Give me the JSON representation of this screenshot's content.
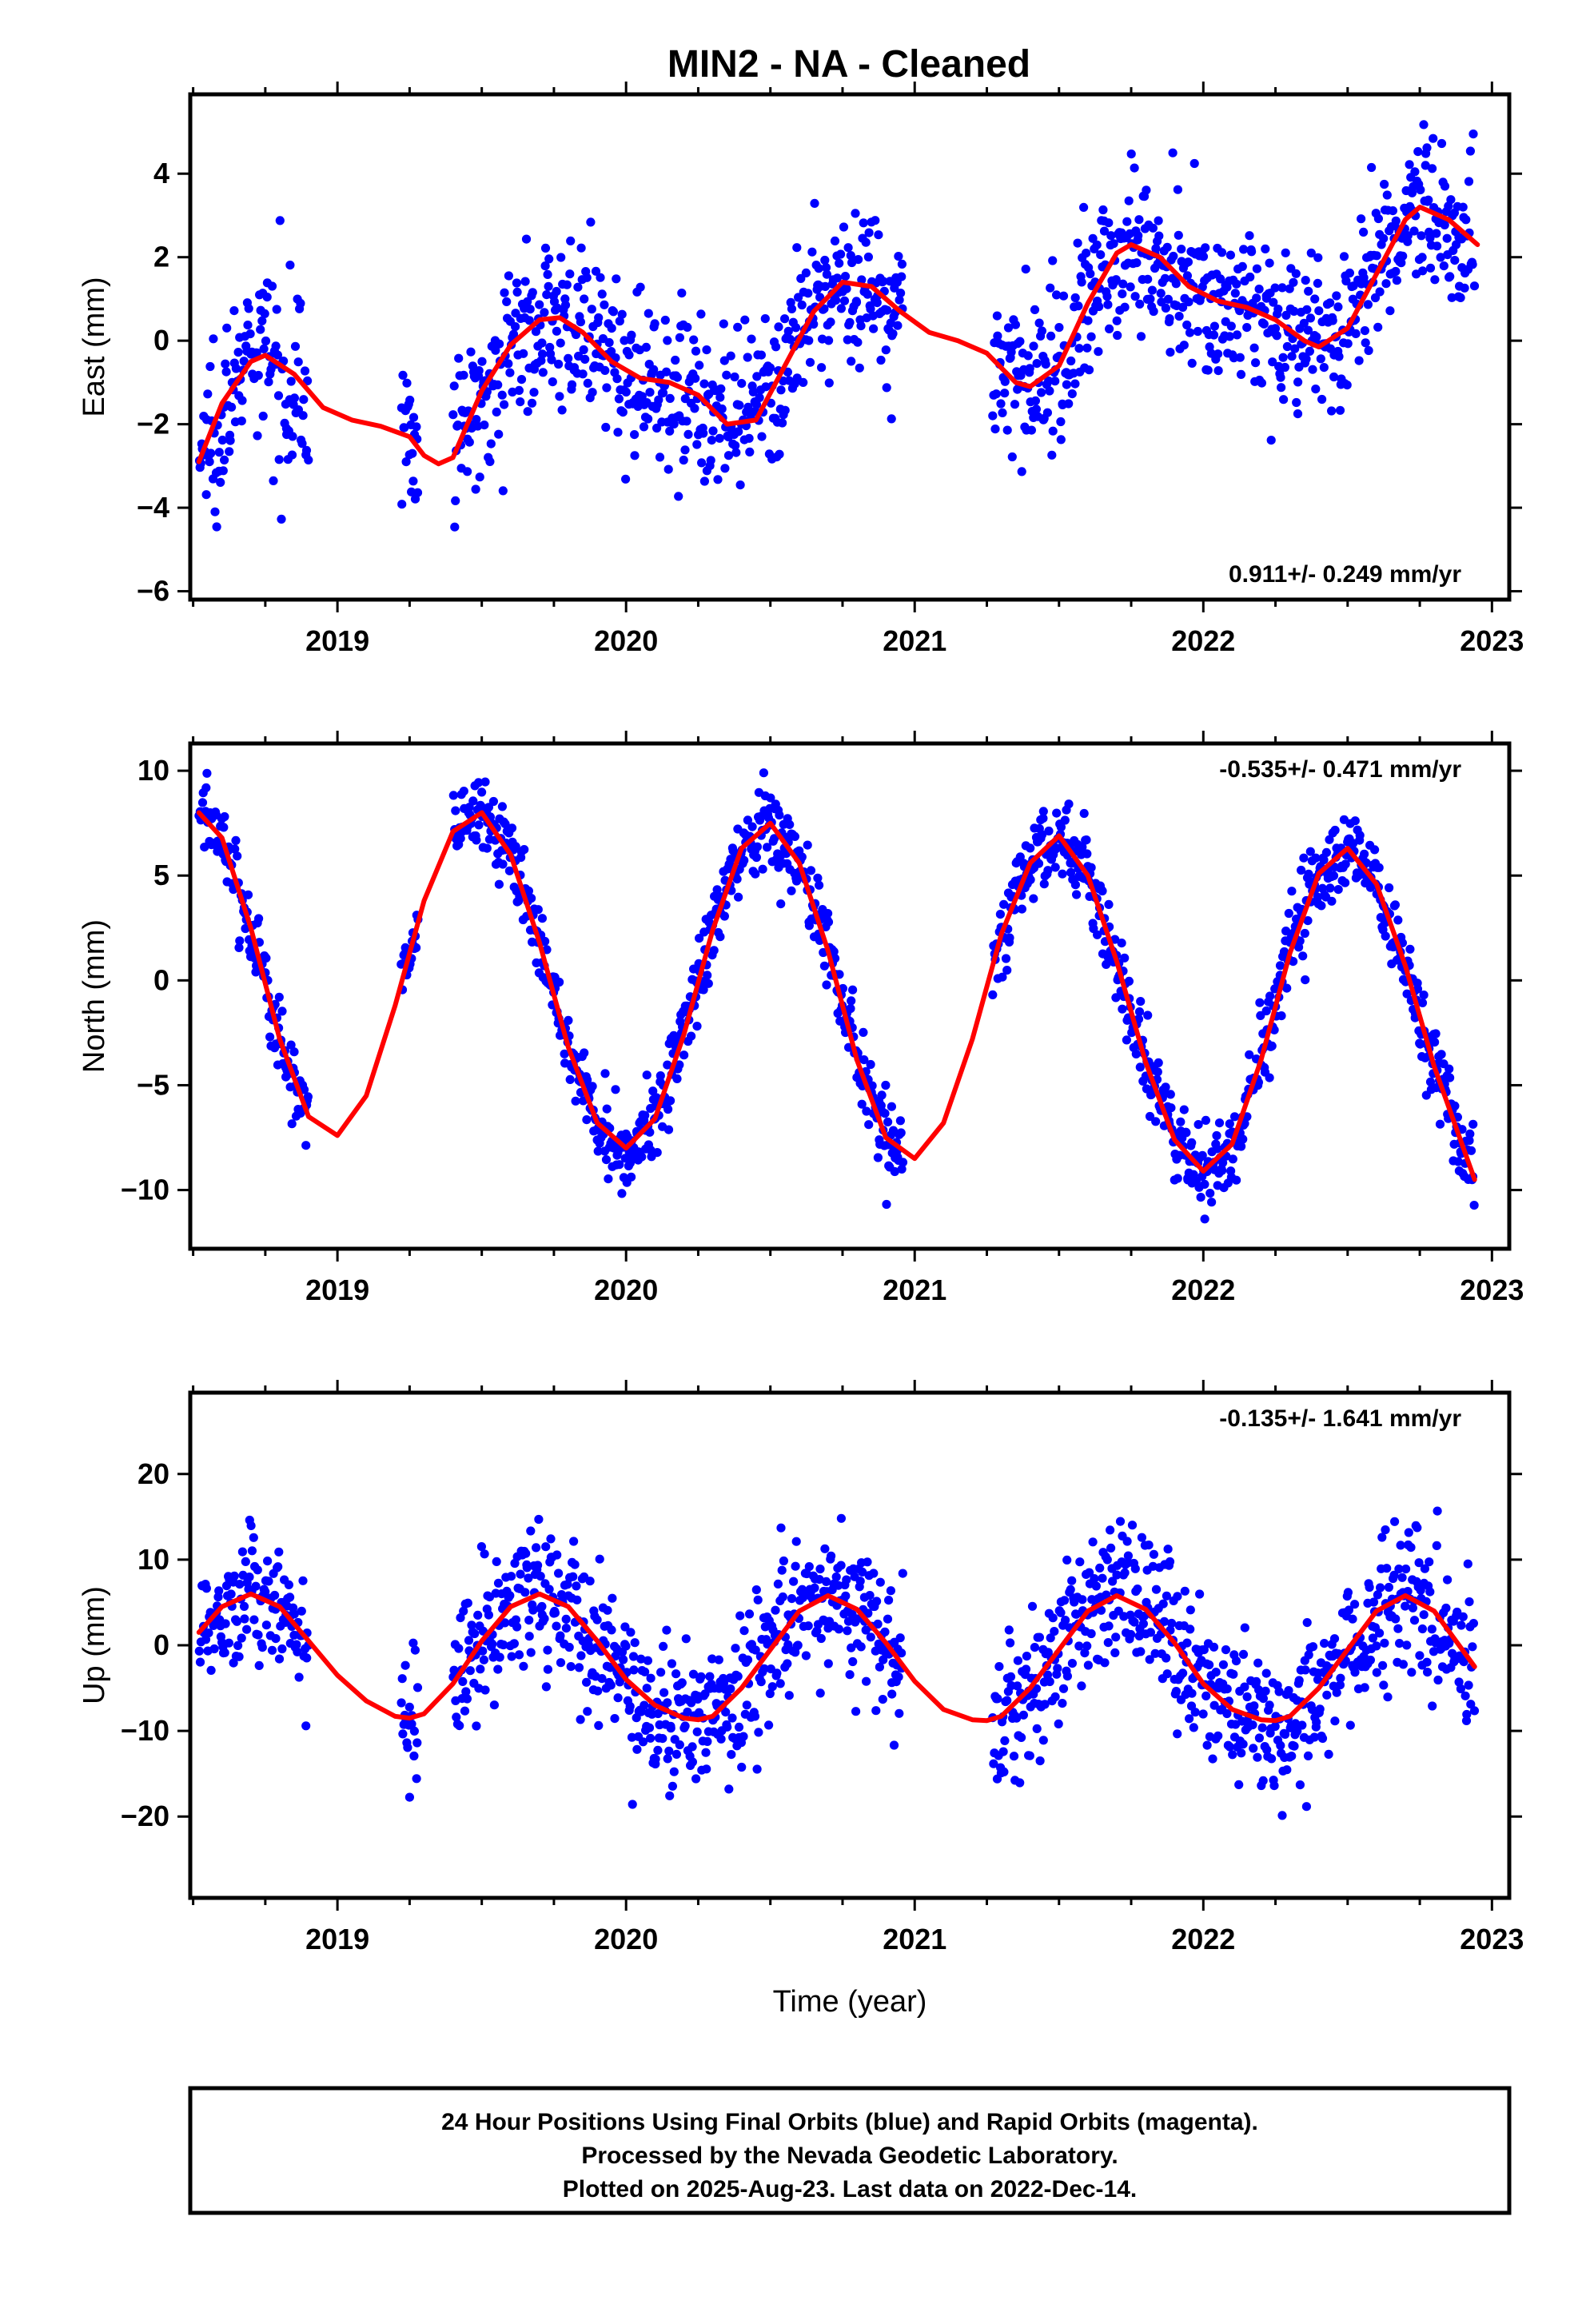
{
  "title": "MIN2  - NA - Cleaned",
  "footer": {
    "lines": [
      "24 Hour Positions Using Final Orbits (blue) and Rapid Orbits (magenta).",
      "Processed by the Nevada Geodetic Laboratory.",
      "Plotted on 2025-Aug-23. Last data on 2022-Dec-14."
    ]
  },
  "colors": {
    "points": "#0000ff",
    "model": "#ff0000",
    "axes": "#000000"
  },
  "chart_data": [
    {
      "type": "scatter",
      "component": "east",
      "ylabel": "East (mm)",
      "xlabel": "",
      "xlim": [
        2018.49,
        2023.06
      ],
      "ylim": [
        -6.2,
        5.9
      ],
      "xticks": [
        2019,
        2020,
        2021,
        2022,
        2023
      ],
      "yticks": [
        -6,
        -4,
        -2,
        0,
        2,
        4
      ],
      "rate_label": "0.911+/- 0.249 mm/yr",
      "rate_position": "bottom-right",
      "gap": [
        2020.97,
        2021.27
      ],
      "model": {
        "x": [
          2018.52,
          2018.6,
          2018.7,
          2018.75,
          2018.85,
          2018.95,
          2019.05,
          2019.15,
          2019.25,
          2019.3,
          2019.35,
          2019.4,
          2019.5,
          2019.6,
          2019.7,
          2019.77,
          2019.85,
          2019.95,
          2020.05,
          2020.15,
          2020.25,
          2020.35,
          2020.45,
          2020.55,
          2020.65,
          2020.75,
          2020.85,
          2020.95,
          2021.05,
          2021.15,
          2021.25,
          2021.35,
          2021.4,
          2021.5,
          2021.6,
          2021.7,
          2021.75,
          2021.85,
          2021.95,
          2022.05,
          2022.15,
          2022.25,
          2022.35,
          2022.4,
          2022.5,
          2022.6,
          2022.7,
          2022.75,
          2022.85,
          2022.95
        ],
        "y": [
          -2.9,
          -1.5,
          -0.5,
          -0.35,
          -0.8,
          -1.6,
          -1.9,
          -2.05,
          -2.3,
          -2.75,
          -2.95,
          -2.8,
          -1.2,
          -0.1,
          0.5,
          0.55,
          0.2,
          -0.5,
          -0.9,
          -1.0,
          -1.3,
          -2.0,
          -1.9,
          -0.6,
          0.7,
          1.4,
          1.3,
          0.7,
          0.2,
          0.0,
          -0.3,
          -1.0,
          -1.1,
          -0.6,
          0.9,
          2.1,
          2.3,
          2.0,
          1.3,
          0.95,
          0.8,
          0.5,
          0.0,
          -0.15,
          0.3,
          1.6,
          2.9,
          3.2,
          2.9,
          2.3
        ]
      },
      "segments": [
        {
          "x0": 2018.52,
          "x1": 2018.9,
          "n": 130,
          "sd": 1.05
        },
        {
          "x0": 2019.22,
          "x1": 2019.28,
          "n": 22,
          "sd": 0.9
        },
        {
          "x0": 2019.4,
          "x1": 2020.96,
          "n": 560,
          "sd": 0.95
        },
        {
          "x0": 2021.27,
          "x1": 2022.94,
          "n": 600,
          "sd": 0.95
        }
      ]
    },
    {
      "type": "scatter",
      "component": "north",
      "ylabel": "North (mm)",
      "xlabel": "",
      "xlim": [
        2018.49,
        2023.06
      ],
      "ylim": [
        -12.8,
        11.3
      ],
      "xticks": [
        2019,
        2020,
        2021,
        2022,
        2023
      ],
      "yticks": [
        -10,
        -5,
        0,
        5,
        10
      ],
      "rate_label": "-0.535+/- 0.471 mm/yr",
      "rate_position": "top-right",
      "gap": [
        2020.97,
        2021.27
      ],
      "model": {
        "x": [
          2018.52,
          2018.6,
          2018.7,
          2018.8,
          2018.9,
          2019.0,
          2019.1,
          2019.2,
          2019.3,
          2019.4,
          2019.5,
          2019.6,
          2019.7,
          2019.8,
          2019.9,
          2020.0,
          2020.1,
          2020.2,
          2020.3,
          2020.4,
          2020.5,
          2020.6,
          2020.7,
          2020.8,
          2020.9,
          2021.0,
          2021.1,
          2021.2,
          2021.3,
          2021.4,
          2021.5,
          2021.6,
          2021.7,
          2021.8,
          2021.9,
          2022.0,
          2022.1,
          2022.2,
          2022.3,
          2022.4,
          2022.5,
          2022.6,
          2022.7,
          2022.8,
          2022.94
        ],
        "y": [
          8.0,
          6.8,
          2.5,
          -2.8,
          -6.5,
          -7.4,
          -5.5,
          -1.2,
          3.8,
          7.1,
          8.0,
          6.0,
          1.8,
          -3.2,
          -6.8,
          -8.0,
          -6.6,
          -2.6,
          2.4,
          6.3,
          7.5,
          5.6,
          1.4,
          -3.8,
          -7.5,
          -8.5,
          -6.8,
          -2.8,
          2.2,
          5.6,
          6.9,
          5.0,
          0.9,
          -3.9,
          -7.6,
          -9.1,
          -7.8,
          -3.8,
          1.3,
          5.1,
          6.3,
          4.6,
          0.7,
          -4.1,
          -9.5
        ]
      },
      "segments": [
        {
          "x0": 2018.52,
          "x1": 2018.9,
          "n": 130,
          "sd": 0.9
        },
        {
          "x0": 2019.22,
          "x1": 2019.28,
          "n": 22,
          "sd": 0.9
        },
        {
          "x0": 2019.4,
          "x1": 2020.96,
          "n": 560,
          "sd": 1.0
        },
        {
          "x0": 2021.27,
          "x1": 2022.94,
          "n": 600,
          "sd": 1.0
        }
      ]
    },
    {
      "type": "scatter",
      "component": "up",
      "ylabel": "Up (mm)",
      "xlabel": "Time (year)",
      "xlim": [
        2018.49,
        2023.06
      ],
      "ylim": [
        -29.5,
        29.5
      ],
      "xticks": [
        2019,
        2020,
        2021,
        2022,
        2023
      ],
      "yticks": [
        -20,
        -10,
        0,
        10,
        20
      ],
      "rate_label": "-0.135+/- 1.641 mm/yr",
      "rate_position": "top-right",
      "gap": [
        2020.97,
        2021.27
      ],
      "model": {
        "x": [
          2018.52,
          2018.6,
          2018.7,
          2018.8,
          2018.9,
          2019.0,
          2019.1,
          2019.2,
          2019.25,
          2019.3,
          2019.4,
          2019.5,
          2019.6,
          2019.7,
          2019.8,
          2019.9,
          2020.0,
          2020.1,
          2020.2,
          2020.25,
          2020.3,
          2020.4,
          2020.5,
          2020.6,
          2020.7,
          2020.8,
          2020.9,
          2021.0,
          2021.1,
          2021.2,
          2021.25,
          2021.3,
          2021.4,
          2021.5,
          2021.6,
          2021.7,
          2021.8,
          2021.9,
          2022.0,
          2022.1,
          2022.2,
          2022.25,
          2022.3,
          2022.4,
          2022.5,
          2022.6,
          2022.7,
          2022.8,
          2022.94
        ],
        "y": [
          1.5,
          4.5,
          6.0,
          4.5,
          0.5,
          -3.5,
          -6.5,
          -8.3,
          -8.5,
          -8.0,
          -4.5,
          0.5,
          4.5,
          6.0,
          4.5,
          0.5,
          -4.0,
          -7.0,
          -8.5,
          -8.7,
          -8.3,
          -5.0,
          -0.5,
          4.0,
          5.8,
          4.2,
          0.3,
          -4.2,
          -7.5,
          -8.7,
          -8.8,
          -8.3,
          -5.0,
          -0.5,
          4.0,
          5.8,
          4.2,
          0.3,
          -4.5,
          -7.5,
          -8.7,
          -8.8,
          -8.3,
          -5.0,
          -0.5,
          4.0,
          5.8,
          4.0,
          -2.5
        ]
      },
      "segments": [
        {
          "x0": 2018.52,
          "x1": 2018.9,
          "n": 130,
          "sd": 3.6
        },
        {
          "x0": 2019.22,
          "x1": 2019.28,
          "n": 22,
          "sd": 5.0
        },
        {
          "x0": 2019.4,
          "x1": 2020.96,
          "n": 560,
          "sd": 4.2
        },
        {
          "x0": 2021.27,
          "x1": 2022.94,
          "n": 600,
          "sd": 4.4
        }
      ]
    }
  ]
}
